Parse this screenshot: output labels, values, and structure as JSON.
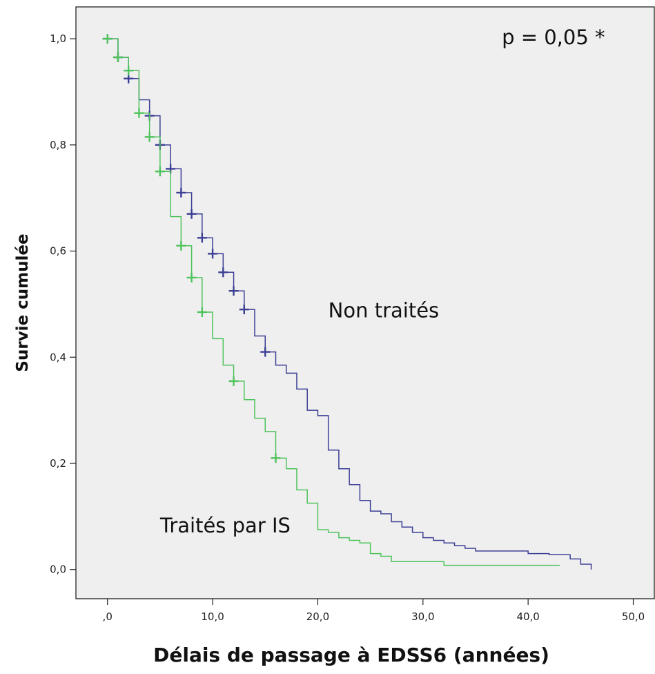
{
  "chart_data": {
    "type": "line",
    "subtype": "kaplan-meier",
    "title": "",
    "xlabel": "Délais de passage à EDSS6 (années)",
    "ylabel": "Survie cumulée",
    "xlim": [
      -3,
      52
    ],
    "ylim": [
      -0.055,
      1.06
    ],
    "x_ticks": [
      0,
      10,
      20,
      30,
      40,
      50
    ],
    "x_tick_labels": [
      ",0",
      "10,0",
      "20,0",
      "30,0",
      "40,0",
      "50,0"
    ],
    "y_ticks": [
      0,
      0.2,
      0.4,
      0.6,
      0.8,
      1.0
    ],
    "y_tick_labels": [
      "0,0",
      "0,2",
      "0,4",
      "0,6",
      "0,8",
      "1,0"
    ],
    "grid": false,
    "background": "#efefef",
    "annotations": [
      {
        "text": "p = 0,05 *",
        "x": 37.5,
        "y": 0.99
      },
      {
        "text": "Non traités",
        "x": 21,
        "y": 0.475
      },
      {
        "text": "Traités par IS",
        "x": 5,
        "y": 0.07
      }
    ],
    "series": [
      {
        "color": "#3b3f94",
        "x": [
          0,
          1,
          2,
          3,
          4,
          5,
          6,
          7,
          8,
          9,
          10,
          11,
          12,
          13,
          14,
          15,
          16,
          17,
          18,
          19,
          20,
          21,
          22,
          23,
          24,
          25,
          26,
          27,
          28,
          29,
          30,
          31,
          32,
          33,
          34,
          35,
          36,
          37,
          38,
          39,
          40,
          41,
          42,
          43,
          44,
          45,
          46
        ],
        "y": [
          1.0,
          0.965,
          0.925,
          0.885,
          0.855,
          0.8,
          0.755,
          0.71,
          0.67,
          0.625,
          0.595,
          0.56,
          0.525,
          0.49,
          0.44,
          0.41,
          0.385,
          0.37,
          0.34,
          0.3,
          0.29,
          0.225,
          0.19,
          0.16,
          0.13,
          0.11,
          0.105,
          0.09,
          0.08,
          0.07,
          0.06,
          0.055,
          0.05,
          0.045,
          0.04,
          0.035,
          0.035,
          0.035,
          0.035,
          0.035,
          0.03,
          0.03,
          0.028,
          0.028,
          0.02,
          0.01,
          0.0
        ],
        "censored": [
          [
            0,
            1.0
          ],
          [
            1,
            0.965
          ],
          [
            2,
            0.925
          ],
          [
            4,
            0.855
          ],
          [
            5,
            0.8
          ],
          [
            6,
            0.755
          ],
          [
            7,
            0.71
          ],
          [
            8,
            0.67
          ],
          [
            9,
            0.625
          ],
          [
            10,
            0.595
          ],
          [
            11,
            0.56
          ],
          [
            12,
            0.525
          ],
          [
            13,
            0.49
          ],
          [
            15,
            0.41
          ]
        ]
      },
      {
        "color": "#4fc35c",
        "x": [
          0,
          1,
          2,
          3,
          4,
          5,
          6,
          7,
          8,
          9,
          10,
          11,
          12,
          13,
          14,
          15,
          16,
          17,
          18,
          19,
          20,
          21,
          22,
          23,
          24,
          25,
          26,
          27,
          28,
          29,
          30,
          31,
          32,
          33,
          34,
          35,
          36,
          37,
          38,
          39,
          40,
          41,
          42,
          43
        ],
        "y": [
          1.0,
          0.965,
          0.94,
          0.86,
          0.815,
          0.75,
          0.665,
          0.61,
          0.55,
          0.485,
          0.435,
          0.385,
          0.355,
          0.32,
          0.285,
          0.26,
          0.21,
          0.19,
          0.15,
          0.125,
          0.075,
          0.07,
          0.06,
          0.055,
          0.05,
          0.03,
          0.025,
          0.015,
          0.015,
          0.015,
          0.015,
          0.015,
          0.008,
          0.008,
          0.008,
          0.008,
          0.008,
          0.008,
          0.008,
          0.008,
          0.008,
          0.008,
          0.008,
          0.008
        ],
        "censored": [
          [
            0,
            1.0
          ],
          [
            1,
            0.965
          ],
          [
            2,
            0.94
          ],
          [
            3,
            0.86
          ],
          [
            4,
            0.815
          ],
          [
            5,
            0.75
          ],
          [
            7,
            0.61
          ],
          [
            8,
            0.55
          ],
          [
            9,
            0.485
          ],
          [
            12,
            0.355
          ],
          [
            16,
            0.21
          ]
        ]
      }
    ]
  }
}
